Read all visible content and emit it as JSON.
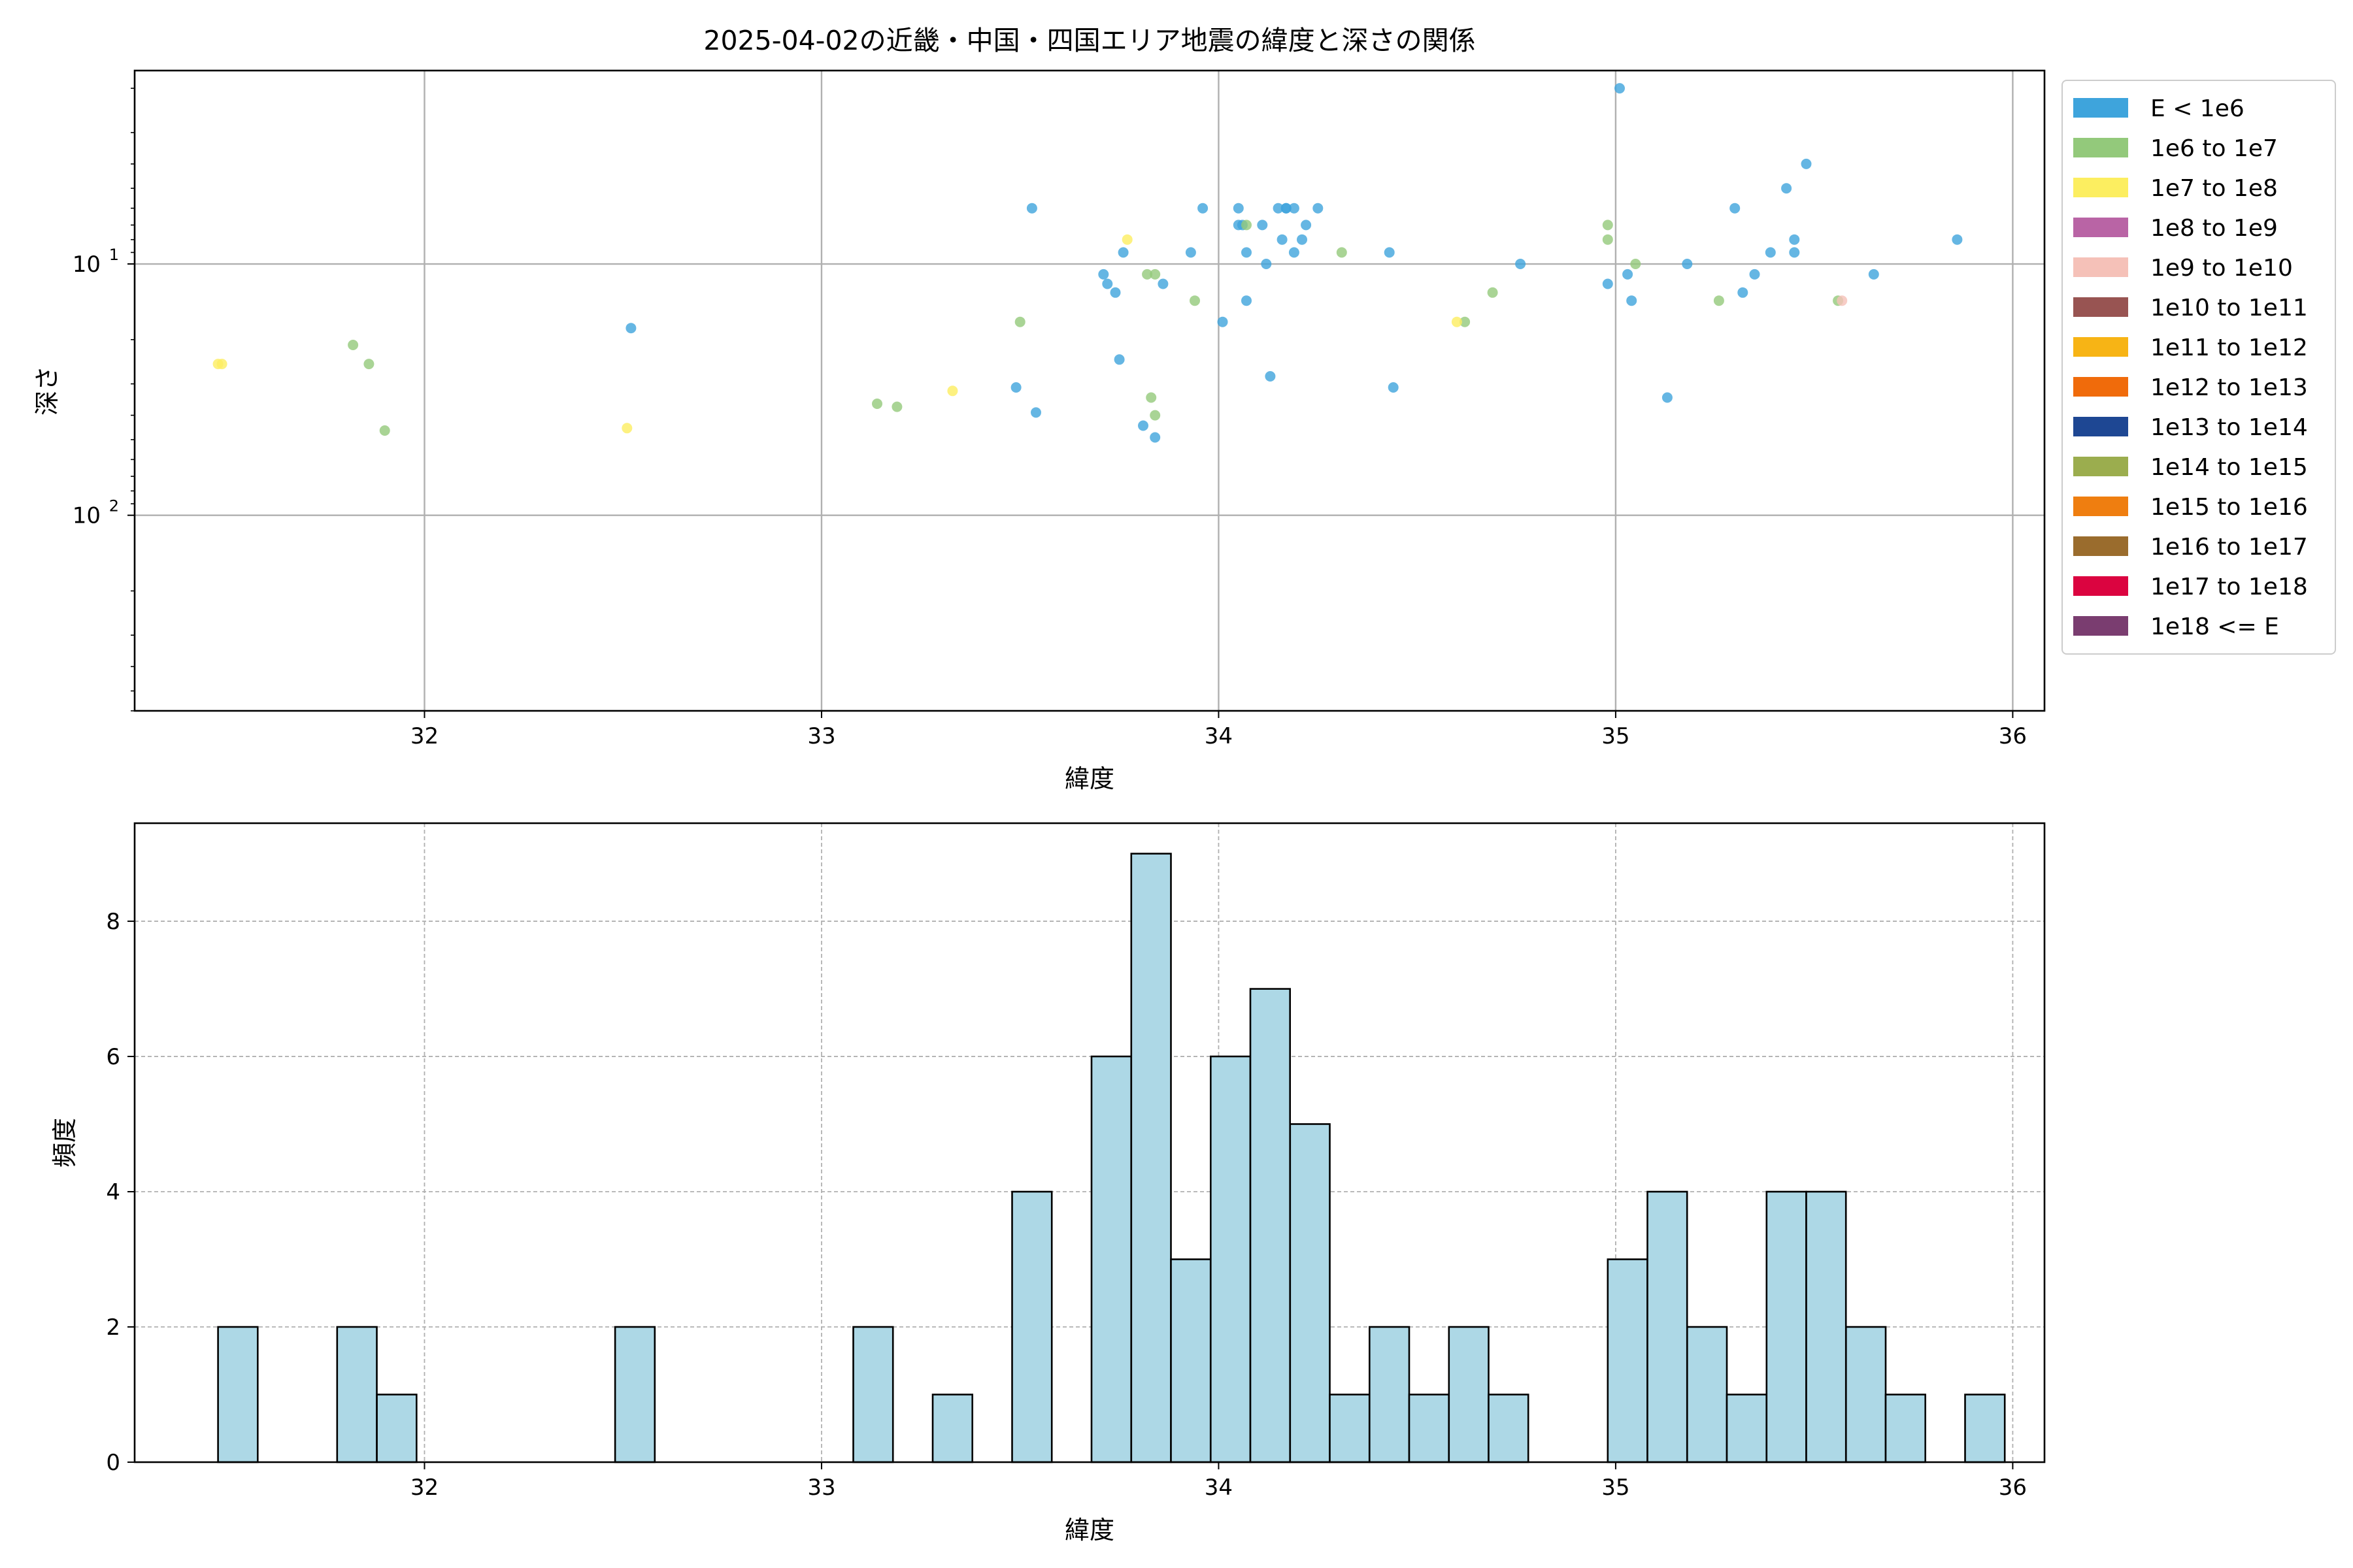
{
  "chart_data": [
    {
      "type": "scatter",
      "title": "2025-04-02の近畿・中国・四国エリア地震の緯度と深さの関係",
      "xlabel": "緯度",
      "ylabel": "深さ",
      "xlim": [
        31.27,
        36.08
      ],
      "ylim": [
        600,
        1.7
      ],
      "yscale": "log",
      "y_inverted": true,
      "grid": true,
      "legend_position": "outside-right",
      "x_ticks": [
        "32",
        "33",
        "34",
        "35",
        "36"
      ],
      "y_ticks": [
        {
          "label": "10",
          "exp": "1",
          "value": 10
        },
        {
          "label": "10",
          "exp": "2",
          "value": 100
        }
      ],
      "legend": [
        {
          "label": "E < 1e6",
          "color": "#3ea4dc"
        },
        {
          "label": "1e6 to 1e7",
          "color": "#93c97b"
        },
        {
          "label": "1e7 to 1e8",
          "color": "#fcee60"
        },
        {
          "label": "1e8 to 1e9",
          "color": "#b964a5"
        },
        {
          "label": "1e9 to 1e10",
          "color": "#f5c1b8"
        },
        {
          "label": "1e10 to 1e11",
          "color": "#985452"
        },
        {
          "label": "1e11 to 1e12",
          "color": "#f7b415"
        },
        {
          "label": "1e12 to 1e13",
          "color": "#f06b0b"
        },
        {
          "label": "1e13 to 1e14",
          "color": "#1e4793"
        },
        {
          "label": "1e14 to 1e15",
          "color": "#9bad4e"
        },
        {
          "label": "1e15 to 1e16",
          "color": "#ef7e10"
        },
        {
          "label": "1e16 to 1e17",
          "color": "#9a6c2d"
        },
        {
          "label": "1e17 to 1e18",
          "color": "#db0440"
        },
        {
          "label": "1e18 <= E",
          "color": "#7a3d70"
        }
      ],
      "series": [
        {
          "class": 0,
          "points": [
            [
              32.52,
              18
            ],
            [
              33.49,
              31
            ],
            [
              33.53,
              6
            ],
            [
              33.54,
              39
            ],
            [
              33.71,
              11
            ],
            [
              33.72,
              12
            ],
            [
              33.74,
              13
            ],
            [
              33.75,
              24
            ],
            [
              33.76,
              9
            ],
            [
              33.81,
              44
            ],
            [
              33.84,
              49
            ],
            [
              33.86,
              12
            ],
            [
              33.93,
              9
            ],
            [
              33.96,
              6
            ],
            [
              34.01,
              17
            ],
            [
              34.05,
              6
            ],
            [
              34.05,
              7
            ],
            [
              34.06,
              7
            ],
            [
              34.07,
              9
            ],
            [
              34.07,
              14
            ],
            [
              34.11,
              7
            ],
            [
              34.12,
              10
            ],
            [
              34.13,
              28
            ],
            [
              34.15,
              6
            ],
            [
              34.16,
              8
            ],
            [
              34.17,
              6
            ],
            [
              34.17,
              6
            ],
            [
              34.19,
              9
            ],
            [
              34.19,
              6
            ],
            [
              34.21,
              8
            ],
            [
              34.22,
              7
            ],
            [
              34.25,
              6
            ],
            [
              34.43,
              9
            ],
            [
              34.44,
              31
            ],
            [
              34.76,
              10
            ],
            [
              34.98,
              12
            ],
            [
              35.01,
              2
            ],
            [
              35.03,
              11
            ],
            [
              35.04,
              14
            ],
            [
              35.13,
              34
            ],
            [
              35.18,
              10
            ],
            [
              35.3,
              6
            ],
            [
              35.32,
              13
            ],
            [
              35.35,
              11
            ],
            [
              35.39,
              9
            ],
            [
              35.43,
              5
            ],
            [
              35.45,
              8
            ],
            [
              35.45,
              9
            ],
            [
              35.48,
              4
            ],
            [
              35.65,
              11
            ],
            [
              35.86,
              8
            ]
          ]
        },
        {
          "class": 1,
          "points": [
            [
              31.82,
              21
            ],
            [
              31.86,
              25
            ],
            [
              31.9,
              46
            ],
            [
              33.14,
              36
            ],
            [
              33.19,
              37
            ],
            [
              33.5,
              17
            ],
            [
              33.82,
              11
            ],
            [
              33.83,
              34
            ],
            [
              33.84,
              40
            ],
            [
              33.84,
              11
            ],
            [
              33.94,
              14
            ],
            [
              34.07,
              7
            ],
            [
              34.31,
              9
            ],
            [
              34.62,
              17
            ],
            [
              34.69,
              13
            ],
            [
              34.98,
              7
            ],
            [
              34.98,
              8
            ],
            [
              35.05,
              10
            ],
            [
              35.26,
              14
            ],
            [
              35.56,
              14
            ]
          ]
        },
        {
          "class": 2,
          "points": [
            [
              31.48,
              25
            ],
            [
              31.49,
              25
            ],
            [
              32.51,
              45
            ],
            [
              33.33,
              32
            ],
            [
              33.77,
              8
            ],
            [
              34.6,
              17
            ]
          ]
        },
        {
          "class": 4,
          "points": [
            [
              35.57,
              14
            ]
          ]
        }
      ]
    },
    {
      "type": "bar",
      "chart": "histogram",
      "xlabel": "緯度",
      "ylabel": "頻度",
      "xlim": [
        31.27,
        36.08
      ],
      "ylim": [
        0,
        9.45
      ],
      "grid": true,
      "bin_start": 31.48,
      "bin_width": 0.1,
      "bar_color": "#add8e6",
      "x_ticks": [
        "32",
        "33",
        "34",
        "35",
        "36"
      ],
      "y_ticks": [
        "0",
        "2",
        "4",
        "6",
        "8"
      ],
      "values": [
        2,
        0,
        0,
        2,
        1,
        0,
        0,
        0,
        0,
        0,
        2,
        0,
        0,
        0,
        0,
        0,
        2,
        0,
        1,
        0,
        4,
        0,
        6,
        9,
        3,
        6,
        7,
        5,
        1,
        2,
        1,
        2,
        1,
        0,
        0,
        3,
        4,
        2,
        1,
        4,
        4,
        2,
        1,
        0,
        1
      ]
    }
  ]
}
